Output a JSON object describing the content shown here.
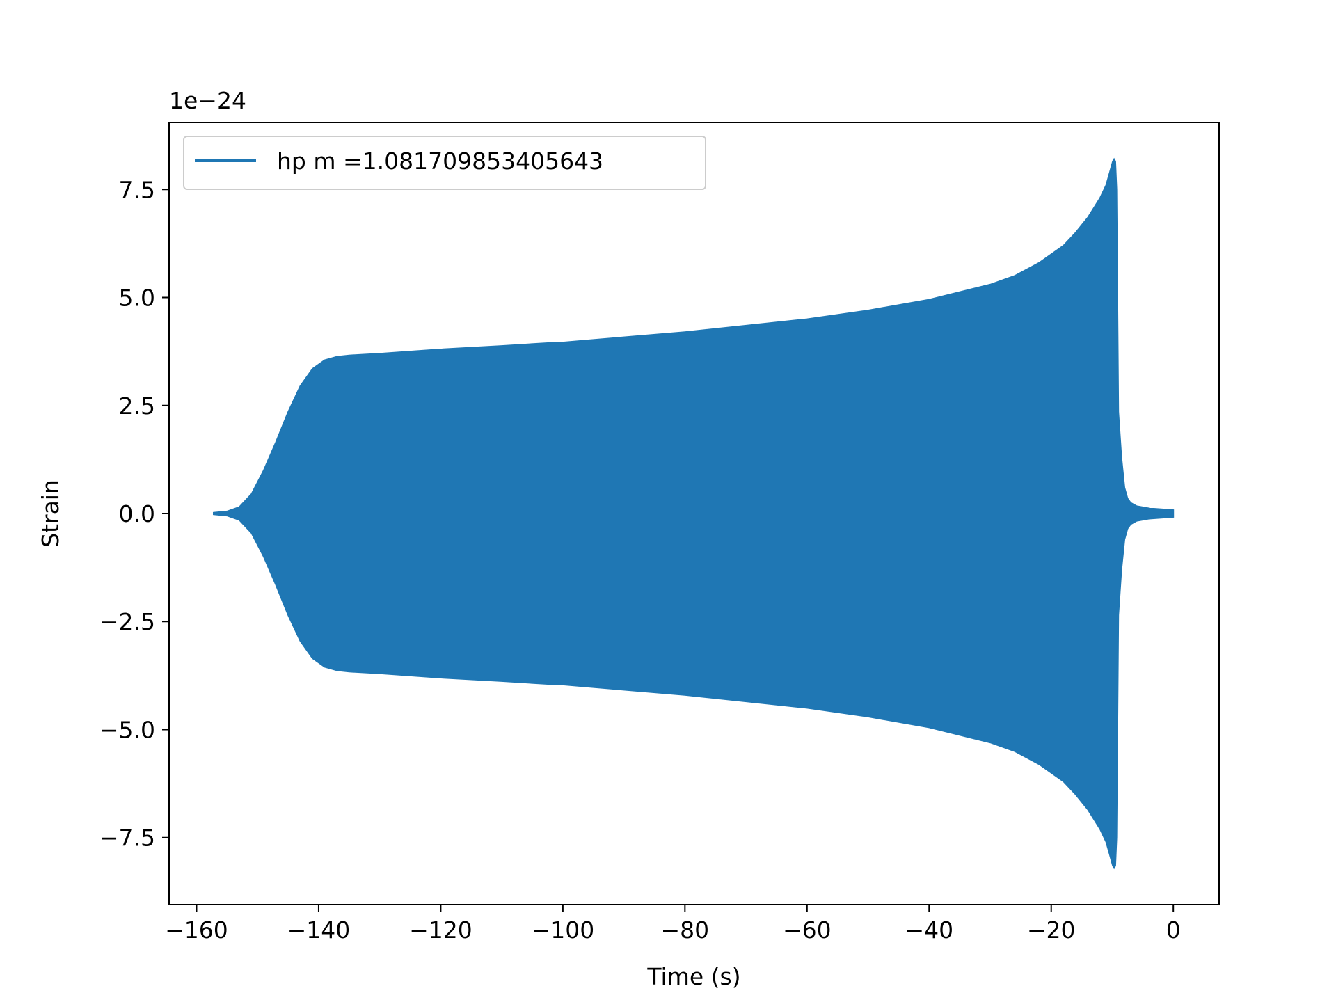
{
  "chart_data": {
    "type": "line",
    "title": "",
    "xlabel": "Time (s)",
    "ylabel": "Strain",
    "y_offset_label": "1e−24",
    "xlim": [
      -164.5,
      7.5
    ],
    "ylim": [
      -9.05,
      9.05
    ],
    "y_scale_factor": 1e-24,
    "x_ticks": [
      -160,
      -140,
      -120,
      -100,
      -80,
      -60,
      -40,
      -20,
      0
    ],
    "x_tick_labels": [
      "−160",
      "−140",
      "−120",
      "−100",
      "−80",
      "−60",
      "−40",
      "−20",
      "0"
    ],
    "y_ticks": [
      -7.5,
      -5.0,
      -2.5,
      0.0,
      2.5,
      5.0,
      7.5
    ],
    "y_tick_labels": [
      "−7.5",
      "−5.0",
      "−2.5",
      "0.0",
      "2.5",
      "5.0",
      "7.5"
    ],
    "grid": false,
    "legend_position": "upper left",
    "color": "#1f77b4",
    "series": [
      {
        "name": "hp m =1.081709853405643",
        "envelope": {
          "x": [
            -157.2,
            -155,
            -153,
            -151,
            -149,
            -147,
            -145,
            -143,
            -141,
            -139,
            -137,
            -135,
            -130,
            -120,
            -110,
            -102,
            -100,
            -95,
            -80,
            -60,
            -50,
            -40,
            -30,
            -26,
            -22,
            -18,
            -16,
            -14,
            -12,
            -11,
            -10.4,
            -9.9,
            -9.7,
            -9.5,
            -9.3,
            -9.0,
            -8.5,
            -8.0,
            -7.5,
            -7.0,
            -6.0,
            -4.0,
            -2.0,
            0.0
          ],
          "upper": [
            0.02,
            0.05,
            0.15,
            0.45,
            1.0,
            1.65,
            2.35,
            2.95,
            3.35,
            3.55,
            3.63,
            3.66,
            3.7,
            3.8,
            3.88,
            3.95,
            3.96,
            4.02,
            4.2,
            4.5,
            4.7,
            4.95,
            5.3,
            5.5,
            5.8,
            6.2,
            6.5,
            6.85,
            7.3,
            7.6,
            7.9,
            8.15,
            8.2,
            8.15,
            7.5,
            2.35,
            1.3,
            0.6,
            0.35,
            0.25,
            0.17,
            0.12,
            0.1,
            0.08
          ],
          "lower": [
            -0.02,
            -0.05,
            -0.15,
            -0.45,
            -1.0,
            -1.65,
            -2.35,
            -2.95,
            -3.35,
            -3.55,
            -3.63,
            -3.66,
            -3.7,
            -3.8,
            -3.88,
            -3.95,
            -3.96,
            -4.02,
            -4.2,
            -4.5,
            -4.7,
            -4.95,
            -5.3,
            -5.5,
            -5.8,
            -6.2,
            -6.5,
            -6.85,
            -7.3,
            -7.6,
            -7.9,
            -8.15,
            -8.2,
            -8.15,
            -7.5,
            -2.35,
            -1.3,
            -0.6,
            -0.35,
            -0.25,
            -0.17,
            -0.12,
            -0.1,
            -0.08
          ]
        }
      }
    ]
  }
}
